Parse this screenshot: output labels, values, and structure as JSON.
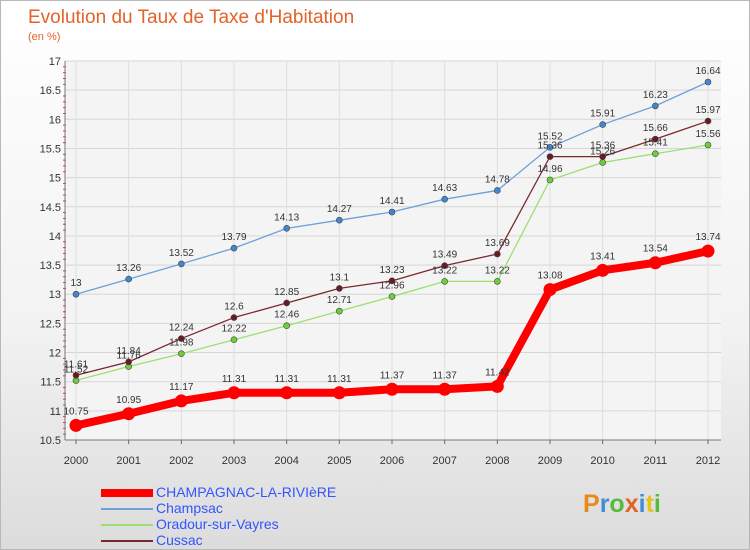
{
  "header": {
    "title": "Evolution du Taux de Taxe d'Habitation",
    "unit": "(en %)"
  },
  "logo": {
    "text": "Proxiti",
    "letter_colors": [
      "#e88a1a",
      "#3f8fd8",
      "#58b93e",
      "#e2632a",
      "#3f8fd8",
      "#e8c21a",
      "#58b93e"
    ]
  },
  "chart_data": {
    "type": "line",
    "x": [
      "2000",
      "2001",
      "2002",
      "2003",
      "2004",
      "2005",
      "2006",
      "2007",
      "2008",
      "2009",
      "2010",
      "2011",
      "2012"
    ],
    "ylim": [
      10.5,
      17
    ],
    "yticks": [
      "10.5",
      "11",
      "11.5",
      "12",
      "12.5",
      "13",
      "13.5",
      "14",
      "14.5",
      "15",
      "15.5",
      "16",
      "16.5",
      "17"
    ],
    "grid": true,
    "legend_position": "bottom-left",
    "series": [
      {
        "name": "CHAMPAGNAC-LA-RIVIèRE",
        "color": "#ff0000",
        "values": [
          10.75,
          10.95,
          11.17,
          11.31,
          11.31,
          11.31,
          11.37,
          11.37,
          11.42,
          13.08,
          13.41,
          13.54,
          13.74
        ],
        "labels": [
          "10.75",
          "10.95",
          "11.17",
          "11.31",
          "11.31",
          "11.31",
          "11.37",
          "11.37",
          "11.42",
          "13.08",
          "13.41",
          "13.54",
          "13.74"
        ]
      },
      {
        "name": "Champsac",
        "color": "#6fa0d8",
        "marker_color": "#3f88d0",
        "values": [
          13,
          13.26,
          13.52,
          13.79,
          14.13,
          14.27,
          14.41,
          14.63,
          14.78,
          15.52,
          15.91,
          16.23,
          16.64
        ],
        "labels": [
          "13",
          "13.26",
          "13.52",
          "13.79",
          "14.13",
          "14.27",
          "14.41",
          "14.63",
          "14.78",
          "15.52",
          "15.91",
          "16.23",
          "16.64"
        ]
      },
      {
        "name": "Oradour-sur-Vayres",
        "color": "#9be070",
        "marker_color": "#6ccf3a",
        "values": [
          11.52,
          11.76,
          11.98,
          12.22,
          12.46,
          12.71,
          12.96,
          13.22,
          13.22,
          14.96,
          15.26,
          15.41,
          15.56
        ],
        "labels": [
          "11.52",
          "11.76",
          "11.98",
          "12.22",
          "12.46",
          "12.71",
          "12.96",
          "13.22",
          "13.22",
          "14.96",
          "15.26",
          "15.41",
          "15.56"
        ]
      },
      {
        "name": "Cussac",
        "color": "#7a2830",
        "marker_color": "#6a1a22",
        "values": [
          11.61,
          11.84,
          12.24,
          12.6,
          12.85,
          13.1,
          13.23,
          13.49,
          13.69,
          15.36,
          15.36,
          15.66,
          15.97
        ],
        "labels": [
          "11.61",
          "11.84",
          "12.24",
          "12.6",
          "12.85",
          "13.1",
          "13.23",
          "13.49",
          "13.69",
          "15.36",
          "15.36",
          "15.66",
          "15.97"
        ]
      }
    ]
  }
}
